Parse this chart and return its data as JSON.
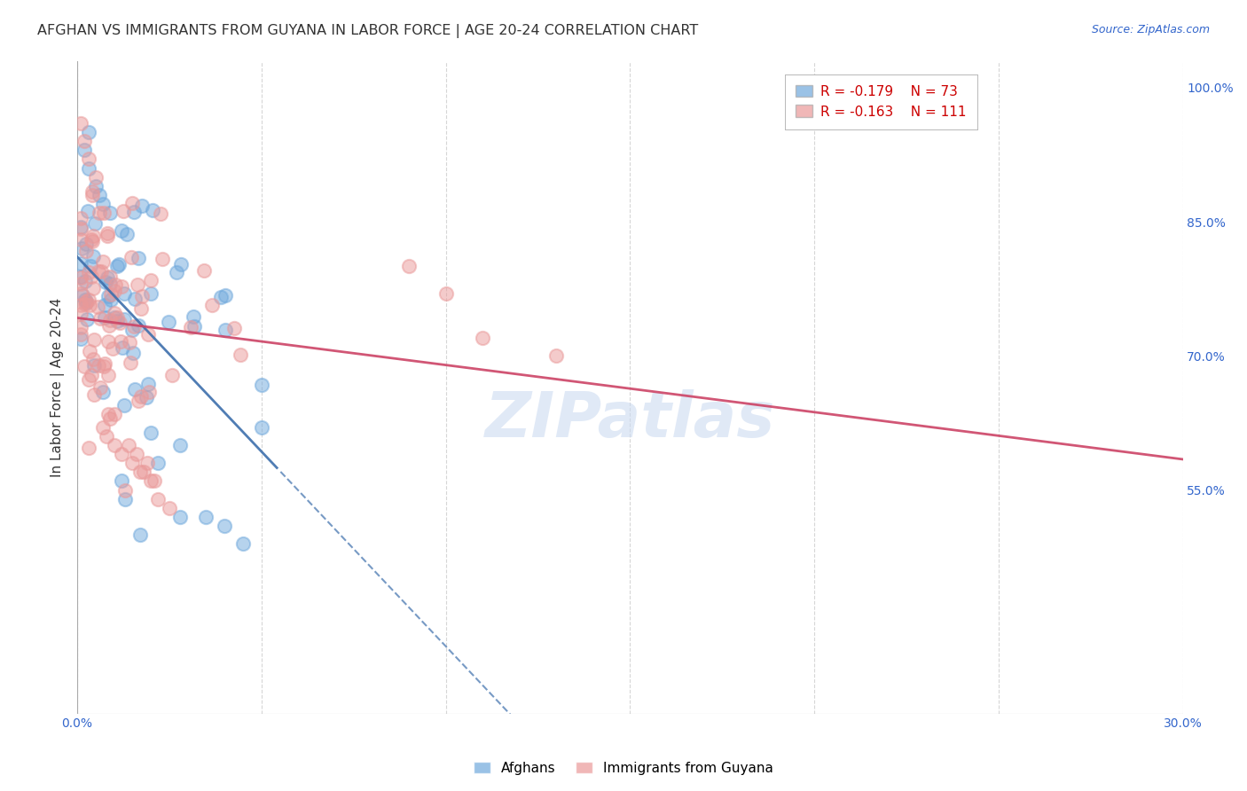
{
  "title": "AFGHAN VS IMMIGRANTS FROM GUYANA IN LABOR FORCE | AGE 20-24 CORRELATION CHART",
  "source": "Source: ZipAtlas.com",
  "ylabel": "In Labor Force | Age 20-24",
  "xlim": [
    0.0,
    0.3
  ],
  "ylim": [
    0.3,
    1.03
  ],
  "yticks_right": [
    0.55,
    0.7,
    0.85,
    1.0
  ],
  "ytick_labels_right": [
    "55.0%",
    "70.0%",
    "85.0%",
    "100.0%"
  ],
  "grid_color": "#cccccc",
  "background_color": "#ffffff",
  "blue_color": "#6fa8dc",
  "pink_color": "#ea9999",
  "blue_line_color": "#3d6fac",
  "pink_line_color": "#cc4466",
  "blue_label": "Afghans",
  "pink_label": "Immigrants from Guyana",
  "R_blue": -0.179,
  "N_blue": 73,
  "R_pink": -0.163,
  "N_pink": 111,
  "watermark": "ZIPatlas",
  "watermark_color": "#c8d8f0",
  "title_fontsize": 11.5,
  "axis_label_fontsize": 11,
  "tick_fontsize": 10,
  "legend_fontsize": 11,
  "source_fontsize": 9
}
